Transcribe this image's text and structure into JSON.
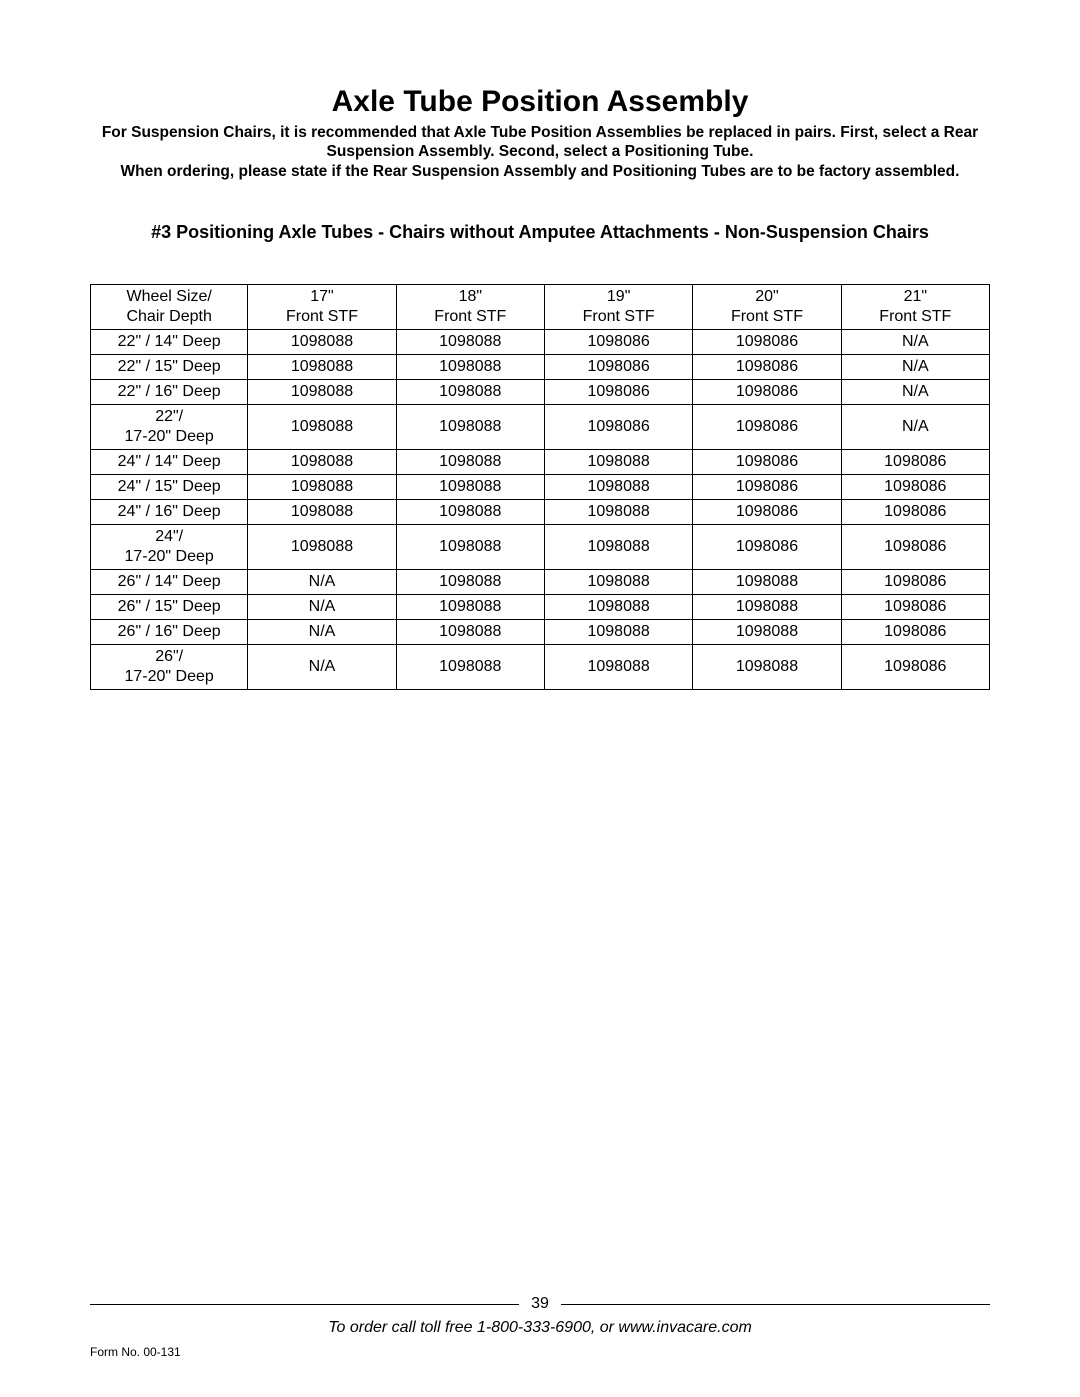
{
  "title": "Axle Tube Position Assembly",
  "intro_lines": [
    "For Suspension Chairs, it is recommended that Axle Tube Position Assemblies be replaced in pairs. First, select a Rear Suspension Assembly. Second, select a Positioning Tube.",
    "When ordering, please state if the Rear Suspension Assembly and Positioning Tubes are to be factory assembled."
  ],
  "section_heading": "#3  Positioning Axle Tubes - Chairs without Amputee Attachments - Non-Suspension Chairs",
  "table": {
    "type": "table",
    "border_color": "#000000",
    "background_color": "#ffffff",
    "font_size_pt": 12,
    "header_rows": [
      [
        "Wheel Size/ Chair Depth",
        "17\" Front STF",
        "18\" Front STF",
        "19\" Front STF",
        "20\" Front STF",
        "21\" Front STF"
      ]
    ],
    "columns": [
      {
        "key": "label",
        "width_pct": 17.5,
        "align": "center"
      },
      {
        "key": "c17",
        "width_pct": 16.5,
        "align": "center"
      },
      {
        "key": "c18",
        "width_pct": 16.5,
        "align": "center"
      },
      {
        "key": "c19",
        "width_pct": 16.5,
        "align": "center"
      },
      {
        "key": "c20",
        "width_pct": 16.5,
        "align": "center"
      },
      {
        "key": "c21",
        "width_pct": 16.5,
        "align": "center"
      }
    ],
    "rows": [
      [
        "22\" / 14\" Deep",
        "1098088",
        "1098088",
        "1098086",
        "1098086",
        "N/A"
      ],
      [
        "22\" / 15\" Deep",
        "1098088",
        "1098088",
        "1098086",
        "1098086",
        "N/A"
      ],
      [
        "22\" / 16\" Deep",
        "1098088",
        "1098088",
        "1098086",
        "1098086",
        "N/A"
      ],
      [
        "22\"/ 17-20\" Deep",
        "1098088",
        "1098088",
        "1098086",
        "1098086",
        "N/A"
      ],
      [
        "24\" / 14\" Deep",
        "1098088",
        "1098088",
        "1098088",
        "1098086",
        "1098086"
      ],
      [
        "24\" / 15\" Deep",
        "1098088",
        "1098088",
        "1098088",
        "1098086",
        "1098086"
      ],
      [
        "24\" / 16\" Deep",
        "1098088",
        "1098088",
        "1098088",
        "1098086",
        "1098086"
      ],
      [
        "24\"/ 17-20\" Deep",
        "1098088",
        "1098088",
        "1098088",
        "1098086",
        "1098086"
      ],
      [
        "26\" / 14\" Deep",
        "N/A",
        "1098088",
        "1098088",
        "1098088",
        "1098086"
      ],
      [
        "26\" / 15\" Deep",
        "N/A",
        "1098088",
        "1098088",
        "1098088",
        "1098086"
      ],
      [
        "26\" / 16\" Deep",
        "N/A",
        "1098088",
        "1098088",
        "1098088",
        "1098086"
      ],
      [
        "26\"/ 17-20\" Deep",
        "N/A",
        "1098088",
        "1098088",
        "1098088",
        "1098086"
      ]
    ],
    "multiline_label_rows": [
      3,
      7,
      11
    ]
  },
  "footer": {
    "page_number": "39",
    "form_no": "Form No.  00-131",
    "order_line": "To order call toll free 1-800-333-6900, or www.invacare.com"
  }
}
